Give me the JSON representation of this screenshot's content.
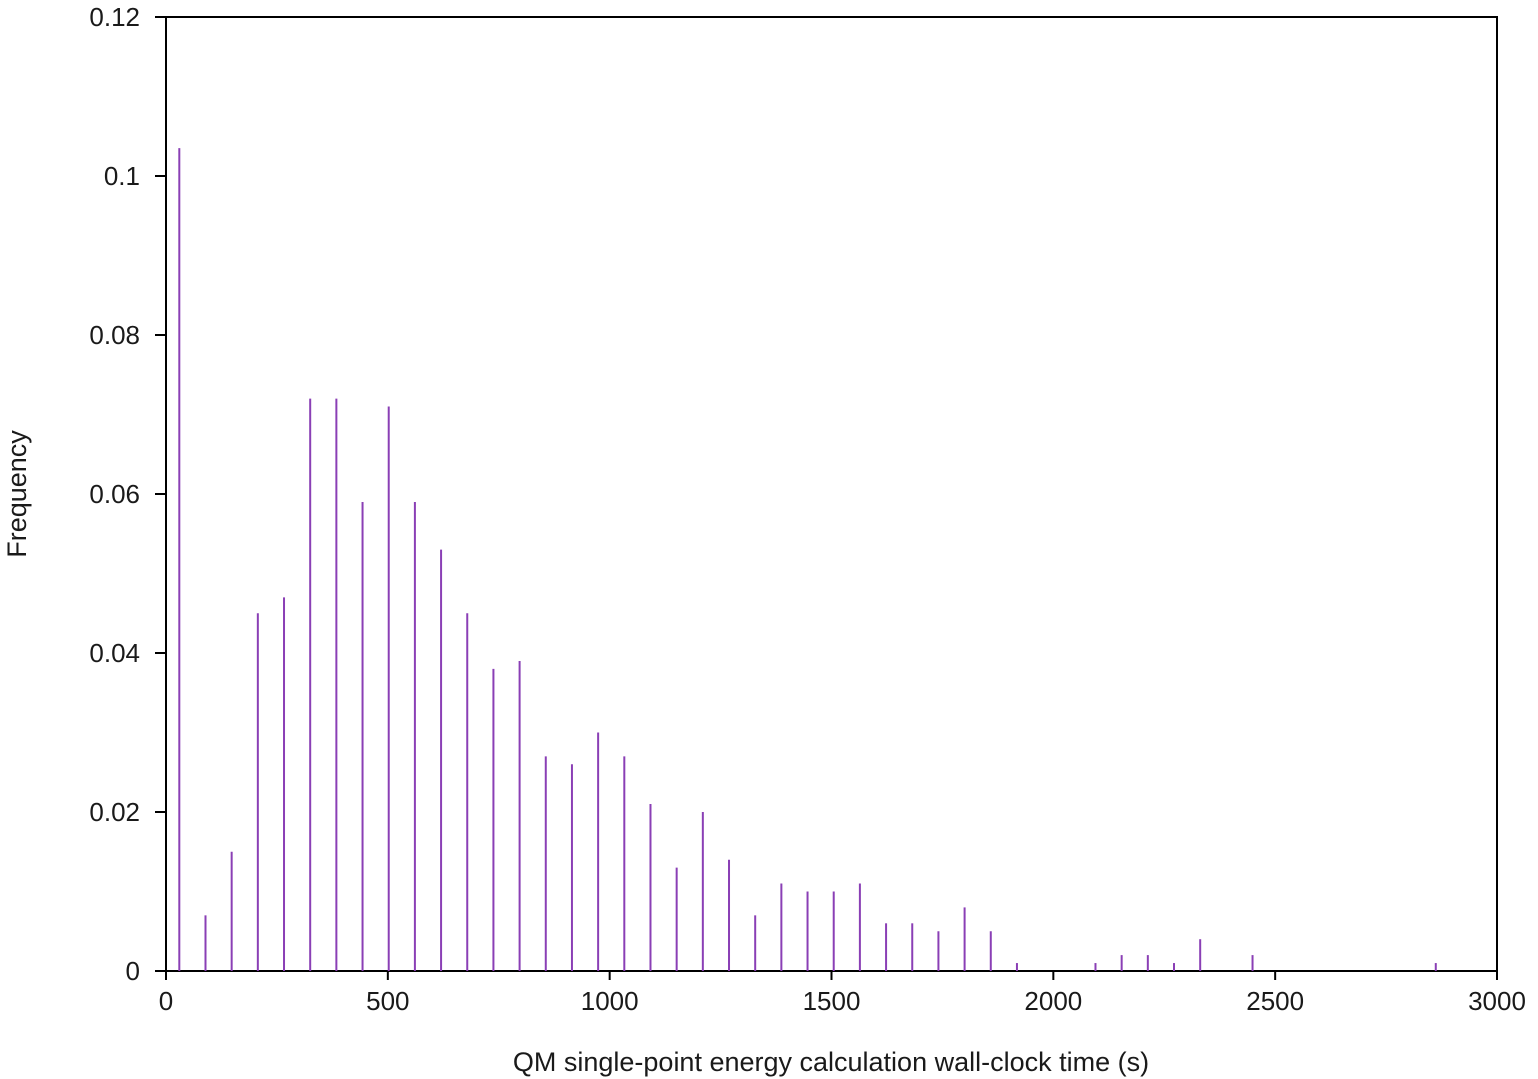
{
  "chart_data": {
    "type": "bar",
    "title": "",
    "xlabel": "QM single-point energy calculation wall-clock time (s)",
    "ylabel": "Frequency",
    "xlim": [
      0,
      3000
    ],
    "ylim": [
      0,
      0.12
    ],
    "x_ticks": [
      0,
      500,
      1000,
      1500,
      2000,
      2500,
      3000
    ],
    "x_tick_labels": [
      "0",
      "500",
      "1000",
      "1500",
      "2000",
      "2500",
      "3000"
    ],
    "y_ticks": [
      0,
      0.02,
      0.04,
      0.06,
      0.08,
      0.1,
      0.12
    ],
    "y_tick_labels": [
      "0",
      "0.02",
      "0.04",
      "0.06",
      "0.08",
      "0.1",
      "0.12"
    ],
    "grid": false,
    "legend": "none",
    "bar_color": "#8a3fb5",
    "series": [
      {
        "x": [
          30,
          89,
          148,
          207,
          266,
          325,
          384,
          443,
          502,
          561,
          620,
          679,
          738,
          797,
          856,
          915,
          974,
          1033,
          1092,
          1151,
          1210,
          1269,
          1328,
          1387,
          1446,
          1505,
          1564,
          1623,
          1682,
          1741,
          1800,
          1859,
          1918,
          2095,
          2154,
          2213,
          2272,
          2331,
          2449,
          2862
        ],
        "values": [
          0.1035,
          0.007,
          0.015,
          0.045,
          0.047,
          0.072,
          0.072,
          0.059,
          0.071,
          0.059,
          0.053,
          0.045,
          0.038,
          0.039,
          0.027,
          0.026,
          0.03,
          0.027,
          0.021,
          0.013,
          0.02,
          0.014,
          0.007,
          0.011,
          0.01,
          0.01,
          0.011,
          0.006,
          0.006,
          0.005,
          0.008,
          0.005,
          0.001,
          0.001,
          0.002,
          0.002,
          0.001,
          0.004,
          0.002,
          0.001
        ]
      }
    ]
  }
}
